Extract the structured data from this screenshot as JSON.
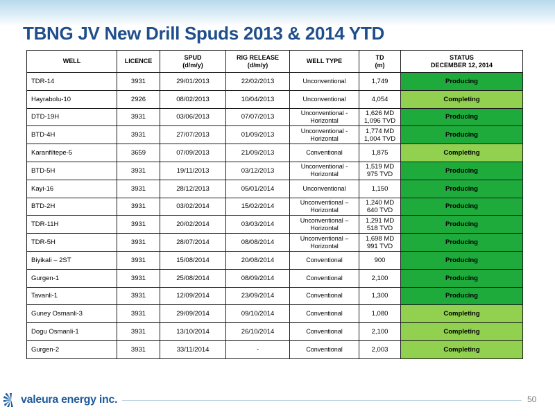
{
  "title": "TBNG JV New Drill Spuds 2013 & 2014 YTD",
  "table": {
    "headers": {
      "well": "WELL",
      "licence": "LICENCE",
      "spud": [
        "SPUD",
        "(d/m/y)"
      ],
      "rig_release": [
        "RIG RELEASE",
        "(d/m/y)"
      ],
      "well_type": "WELL TYPE",
      "td": [
        "TD",
        "(m)"
      ],
      "status": [
        "STATUS",
        "DECEMBER 12, 2014"
      ]
    },
    "rows": [
      {
        "well": "TDR-14",
        "licence": "3931",
        "spud": "29/01/2013",
        "rig_release": "22/02/2013",
        "type": [
          "Unconventional"
        ],
        "td": [
          "1,749"
        ],
        "status": "Producing"
      },
      {
        "well": "Hayrabolu-10",
        "licence": "2926",
        "spud": "08/02/2013",
        "rig_release": "10/04/2013",
        "type": [
          "Unconventional"
        ],
        "td": [
          "4,054"
        ],
        "status": "Completing"
      },
      {
        "well": "DTD-19H",
        "licence": "3931",
        "spud": "03/06/2013",
        "rig_release": "07/07/2013",
        "type": [
          "Unconventional -",
          "Horizontal"
        ],
        "td": [
          "1,626 MD",
          "1,096 TVD"
        ],
        "status": "Producing"
      },
      {
        "well": "BTD-4H",
        "licence": "3931",
        "spud": "27/07/2013",
        "rig_release": "01/09/2013",
        "type": [
          "Unconventional -",
          "Horizontal"
        ],
        "td": [
          "1,774 MD",
          "1,004 TVD"
        ],
        "status": "Producing"
      },
      {
        "well": "Karanfiltepe-5",
        "licence": "3659",
        "spud": "07/09/2013",
        "rig_release": "21/09/2013",
        "type": [
          "Conventional"
        ],
        "td": [
          "1,875"
        ],
        "status": "Completing"
      },
      {
        "well": "BTD-5H",
        "licence": "3931",
        "spud": "19/11/2013",
        "rig_release": "03/12/2013",
        "type": [
          "Unconventional -",
          "Horizontal"
        ],
        "td": [
          "1,519 MD",
          "975 TVD"
        ],
        "status": "Producing"
      },
      {
        "well": "Kayi-16",
        "licence": "3931",
        "spud": "28/12/2013",
        "rig_release": "05/01/2014",
        "type": [
          "Unconventional"
        ],
        "td": [
          "1,150"
        ],
        "status": "Producing"
      },
      {
        "well": "BTD-2H",
        "licence": "3931",
        "spud": "03/02/2014",
        "rig_release": "15/02/2014",
        "type": [
          "Unconventional –",
          "Horizontal"
        ],
        "td": [
          "1,240 MD",
          "640 TVD"
        ],
        "status": "Producing"
      },
      {
        "well": "TDR-11H",
        "licence": "3931",
        "spud": "20/02/2014",
        "rig_release": "03/03/2014",
        "type": [
          "Unconventional –",
          "Horizontal"
        ],
        "td": [
          "1,291 MD",
          "518 TVD"
        ],
        "status": "Producing"
      },
      {
        "well": "TDR-5H",
        "licence": "3931",
        "spud": "28/07/2014",
        "rig_release": "08/08/2014",
        "type": [
          "Unconventional –",
          "Horizontal"
        ],
        "td": [
          "1,698 MD",
          "991 TVD"
        ],
        "status": "Producing"
      },
      {
        "well": "Biyikali – 2ST",
        "licence": "3931",
        "spud": "15/08/2014",
        "rig_release": "20/08/2014",
        "type": [
          "Conventional"
        ],
        "td": [
          "900"
        ],
        "status": "Producing"
      },
      {
        "well": "Gurgen-1",
        "licence": "3931",
        "spud": "25/08/2014",
        "rig_release": "08/09/2014",
        "type": [
          "Conventional"
        ],
        "td": [
          "2,100"
        ],
        "status": "Producing"
      },
      {
        "well": "Tavanli-1",
        "licence": "3931",
        "spud": "12/09/2014",
        "rig_release": "23/09/2014",
        "type": [
          "Conventional"
        ],
        "td": [
          "1,300"
        ],
        "status": "Producing"
      },
      {
        "well": "Guney Osmanli-3",
        "licence": "3931",
        "spud": "29/09/2014",
        "rig_release": "09/10/2014",
        "type": [
          "Conventional"
        ],
        "td": [
          "1,080"
        ],
        "status": "Completing"
      },
      {
        "well": "Dogu Osmanli-1",
        "licence": "3931",
        "spud": "13/10/2014",
        "rig_release": "26/10/2014",
        "type": [
          "Conventional"
        ],
        "td": [
          "2,100"
        ],
        "status": "Completing"
      },
      {
        "well": "Gurgen-2",
        "licence": "3931",
        "spud": "33/11/2014",
        "rig_release": "-",
        "type": [
          "Conventional"
        ],
        "td": [
          "2,003"
        ],
        "status": "Completing"
      }
    ]
  },
  "footer": {
    "logo_text": "valeura energy inc.",
    "page_number": "50"
  },
  "colors": {
    "title": "#1f4e8c",
    "producing": "#1faa3c",
    "completing": "#92d050",
    "logo": "#1f5a9a"
  }
}
